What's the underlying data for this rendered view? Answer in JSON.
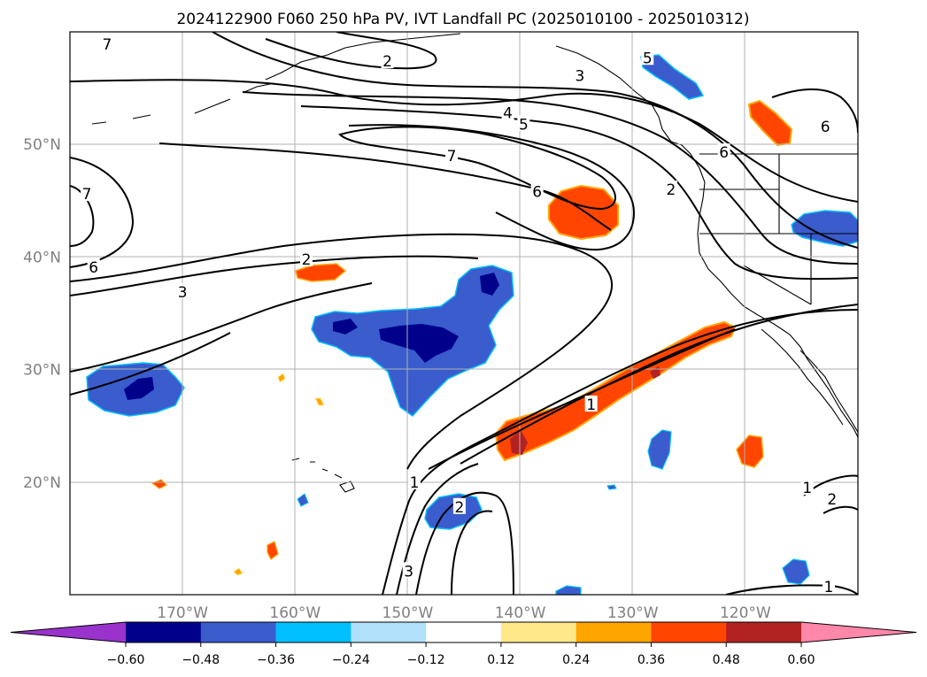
{
  "title": "2024122900 F060 250 hPa PV, IVT Landfall PC (2025010100 - 2025010312)",
  "map": {
    "lon_range": [
      -180,
      -110
    ],
    "lat_range": [
      10,
      60
    ],
    "lat_ticks": [
      {
        "value": 20,
        "label": "20°N"
      },
      {
        "value": 30,
        "label": "30°N"
      },
      {
        "value": 40,
        "label": "40°N"
      },
      {
        "value": 50,
        "label": "50°N"
      }
    ],
    "lon_ticks": [
      {
        "value": -170,
        "label": "170°W"
      },
      {
        "value": -160,
        "label": "160°W"
      },
      {
        "value": -150,
        "label": "150°W"
      },
      {
        "value": -140,
        "label": "140°W"
      },
      {
        "value": -130,
        "label": "130°W"
      },
      {
        "value": -120,
        "label": "120°W"
      }
    ],
    "grid": true,
    "contour_field": "250 hPa PV",
    "contour_labels": [
      {
        "text": "7",
        "lon": -176.7,
        "lat": 58.9
      },
      {
        "text": "2",
        "lon": -151.8,
        "lat": 57.4
      },
      {
        "text": "3",
        "lon": -134.7,
        "lat": 56.1
      },
      {
        "text": "5",
        "lon": -128.7,
        "lat": 57.7
      },
      {
        "text": "4",
        "lon": -141.1,
        "lat": 52.8
      },
      {
        "text": "5",
        "lon": -139.7,
        "lat": 51.8
      },
      {
        "text": "6",
        "lon": -112.9,
        "lat": 51.6
      },
      {
        "text": "6",
        "lon": -121.9,
        "lat": 49.3
      },
      {
        "text": "7",
        "lon": -146.1,
        "lat": 49.0
      },
      {
        "text": "6",
        "lon": -138.5,
        "lat": 45.8
      },
      {
        "text": "2",
        "lon": -126.6,
        "lat": 46.0
      },
      {
        "text": "7",
        "lon": -178.5,
        "lat": 45.6
      },
      {
        "text": "6",
        "lon": -177.9,
        "lat": 39.1
      },
      {
        "text": "2",
        "lon": -159.0,
        "lat": 39.8
      },
      {
        "text": "3",
        "lon": -170.0,
        "lat": 36.9
      },
      {
        "text": "1",
        "lon": -133.7,
        "lat": 26.9
      },
      {
        "text": "1",
        "lon": -149.4,
        "lat": 20.0
      },
      {
        "text": "2",
        "lon": -145.4,
        "lat": 17.8
      },
      {
        "text": "3",
        "lon": -149.9,
        "lat": 12.1
      },
      {
        "text": "1",
        "lon": -114.5,
        "lat": 19.5
      },
      {
        "text": "2",
        "lon": -112.3,
        "lat": 18.5
      },
      {
        "text": "1",
        "lon": -112.6,
        "lat": 10.7
      }
    ]
  },
  "colorbar": {
    "levels": [
      -0.6,
      -0.48,
      -0.36,
      -0.24,
      -0.12,
      0.12,
      0.24,
      0.36,
      0.48,
      0.6
    ],
    "tick_labels": [
      "−0.60",
      "−0.48",
      "−0.36",
      "−0.24",
      "−0.12",
      "0.12",
      "0.24",
      "0.36",
      "0.48",
      "0.60"
    ],
    "colors": [
      "#9933cc",
      "#00008b",
      "#3a5ccc",
      "#00bfff",
      "#b0e0fa",
      "#ffffff",
      "#ffe88a",
      "#ffa500",
      "#ff4500",
      "#b22222",
      "#ff88aa"
    ],
    "extend": "both"
  },
  "colors": {
    "contour": "#000000",
    "coastline": "#000000",
    "grid": "#b0b0b0",
    "tick_label": "#808080"
  }
}
